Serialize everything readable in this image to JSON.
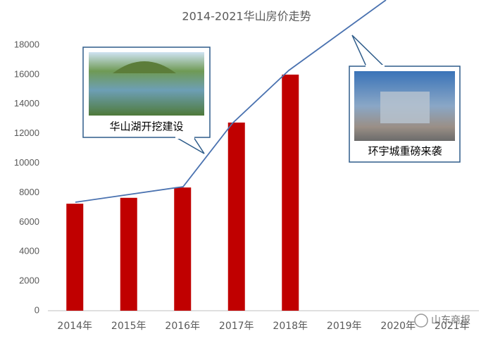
{
  "chart_data": {
    "type": "bar",
    "title": "2014-2021华山房价走势",
    "categories": [
      "2014年",
      "2015年",
      "2016年",
      "2017年",
      "2018年",
      "2019年",
      "2020年",
      "2021年"
    ],
    "values": [
      7250,
      7650,
      8350,
      12750,
      16000,
      null,
      null,
      null
    ],
    "color": "#c00000",
    "ylim": [
      0,
      18000
    ],
    "yticks": [
      0,
      2000,
      4000,
      6000,
      8000,
      10000,
      12000,
      14000,
      16000,
      18000
    ],
    "annotations": [
      "华山湖开挖建设",
      "环宇城重磅来袭"
    ],
    "watermark": "山东商报"
  }
}
